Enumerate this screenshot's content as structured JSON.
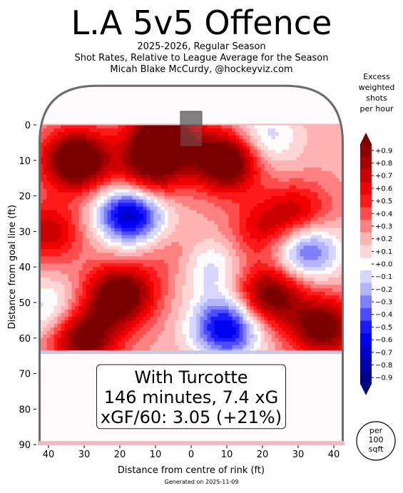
{
  "title": "L.A 5v5 Offence",
  "subtitle": {
    "line1": "2025-2026, Regular Season",
    "line2": "Shot Rates, Relative to League Average for the Season",
    "line3": "Micah Blake McCurdy, @hockeyviz.com"
  },
  "generated": "Generated on 2025-11-09",
  "chart_data": {
    "type": "heatmap",
    "xlabel": "Distance from centre of rink (ft)",
    "ylabel": "Distance from goal line (ft)",
    "xlim": [
      -43,
      43
    ],
    "ylim": [
      90,
      -11
    ],
    "x_ticks": [
      -40,
      -30,
      -20,
      -10,
      0,
      10,
      20,
      30,
      40
    ],
    "x_tick_labels": [
      "40",
      "30",
      "20",
      "10",
      "0",
      "10",
      "20",
      "30",
      "40"
    ],
    "y_ticks": [
      0,
      10,
      20,
      30,
      40,
      50,
      60,
      70,
      80,
      90
    ],
    "y_tick_labels": [
      "0",
      "10",
      "20",
      "30",
      "40",
      "50",
      "60",
      "70",
      "80",
      "90"
    ],
    "colorbar": {
      "title": [
        "Excess",
        "weighted",
        "shots",
        "per hour"
      ],
      "levels": [
        0.9,
        0.8,
        0.7,
        0.6,
        0.5,
        0.4,
        0.3,
        0.2,
        0.1,
        0.0,
        -0.1,
        -0.2,
        -0.3,
        -0.4,
        -0.5,
        -0.6,
        -0.7,
        -0.8,
        -0.9
      ],
      "labels": [
        "+0.9",
        "+0.8",
        "+0.7",
        "+0.6",
        "+0.5",
        "+0.4",
        "+0.3",
        "+0.2",
        "+0.1",
        "+0.0",
        "−0.1",
        "−0.2",
        "−0.3",
        "−0.4",
        "−0.5",
        "−0.6",
        "−0.7",
        "−0.8",
        "−0.9"
      ]
    },
    "hotspots": [
      {
        "x": -32,
        "y": 10,
        "value": 1.0
      },
      {
        "x": -8,
        "y": 4,
        "value": 1.0
      },
      {
        "x": 10,
        "y": 10,
        "value": 1.0
      },
      {
        "x": -20,
        "y": 48,
        "value": 0.9
      },
      {
        "x": -30,
        "y": 60,
        "value": 0.8
      },
      {
        "x": 22,
        "y": 48,
        "value": 0.8
      },
      {
        "x": 37,
        "y": 57,
        "value": 0.8
      },
      {
        "x": 30,
        "y": 25,
        "value": 0.5
      },
      {
        "x": 20,
        "y": 30,
        "value": 0.4
      },
      {
        "x": -40,
        "y": 30,
        "value": 0.5
      },
      {
        "x": -12,
        "y": 14,
        "value": 0.6
      },
      {
        "x": -17,
        "y": 25,
        "value": -1.0
      },
      {
        "x": 10,
        "y": 57,
        "value": -0.9
      },
      {
        "x": 32,
        "y": 35,
        "value": -0.7
      },
      {
        "x": 20,
        "y": 4,
        "value": -0.4
      },
      {
        "x": -40,
        "y": 52,
        "value": -0.35
      },
      {
        "x": 5,
        "y": 40,
        "value": -0.35
      },
      {
        "x": -5,
        "y": 37,
        "value": 0.2
      }
    ],
    "annotation": {
      "line1": "With Turcotte",
      "line2": "146 minutes, 7.4 xG",
      "line3": "xGF/60: 3.05 (+21%)"
    },
    "unit_label": [
      "per",
      "100",
      "sqft"
    ],
    "grid": false,
    "legend": "colorbar-right"
  },
  "colors": {
    "rink_outline": "#6b6b6b",
    "net": "#808080",
    "goal_line": "#f2b8c2",
    "blue_line": "#c2cce8",
    "ice": "#fffafc"
  }
}
